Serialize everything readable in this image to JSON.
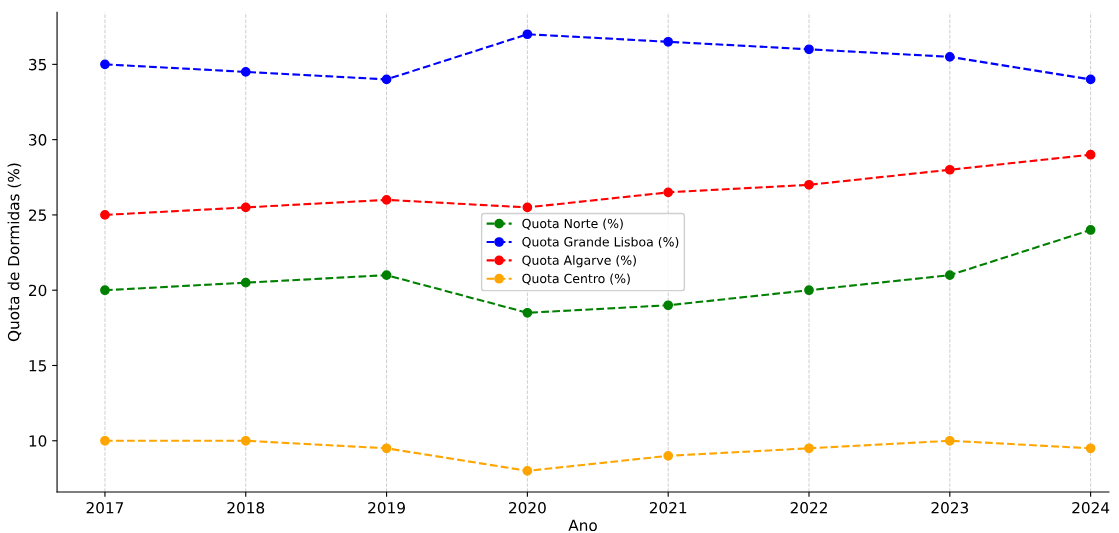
{
  "chart_data": {
    "type": "line",
    "xlabel": "Ano",
    "ylabel": "Quota de Dormidas (%)",
    "x": [
      2017,
      2018,
      2019,
      2020,
      2021,
      2022,
      2023,
      2024
    ],
    "series": [
      {
        "name": "Quota Norte (%)",
        "color": "#008000",
        "values": [
          20,
          20.5,
          21,
          18.5,
          19,
          20,
          21,
          24
        ]
      },
      {
        "name": "Quota Grande Lisboa (%)",
        "color": "#0000ff",
        "values": [
          35,
          34.5,
          34,
          37,
          36.5,
          36,
          35.5,
          34
        ]
      },
      {
        "name": "Quota Algarve (%)",
        "color": "#ff0000",
        "values": [
          25,
          25.5,
          26,
          25.5,
          26.5,
          27,
          28,
          29
        ]
      },
      {
        "name": "Quota Centro (%)",
        "color": "#ffa500",
        "values": [
          10,
          10,
          9.5,
          8,
          9,
          9.5,
          10,
          9.5
        ]
      }
    ],
    "xlim": [
      2016.66,
      2024.13
    ],
    "ylim": [
      6.6,
      38.46
    ],
    "xticks": [
      2017,
      2018,
      2019,
      2020,
      2021,
      2022,
      2023,
      2024
    ],
    "yticks": [
      10,
      15,
      20,
      25,
      30,
      35
    ],
    "grid": "x",
    "legend": "center",
    "marker": "circle",
    "line_style": "dashed"
  }
}
